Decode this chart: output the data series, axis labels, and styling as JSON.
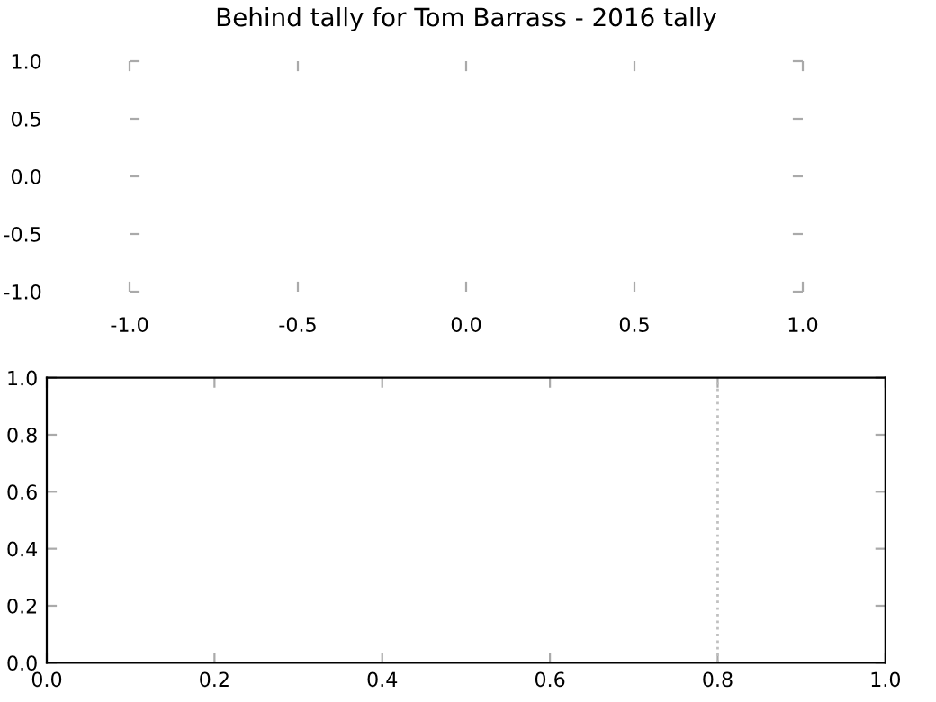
{
  "chart_data": [
    {
      "type": "line",
      "title": "Behind tally for Tom Barrass - 2016 tally",
      "xlim": [
        -1.0,
        1.0
      ],
      "xticks": [
        {
          "value": -1.0,
          "label": "-1.0"
        },
        -0.5,
        {
          "value": 0.0,
          "label": "0.0"
        },
        0.5,
        {
          "value": 1.0,
          "label": "1.0"
        }
      ],
      "ylim": [
        -1.0,
        1.0
      ],
      "yticks": [
        {
          "value": -1.0,
          "label": "-1.0"
        },
        -0.5,
        {
          "value": 0.0,
          "label": "0.0"
        },
        0.5,
        {
          "value": 1.0,
          "label": "1.0"
        }
      ],
      "grid": false,
      "legend": false
    },
    {
      "type": "line",
      "xlim": [
        0.0,
        1.0
      ],
      "xticks": [
        {
          "value": 0.0,
          "label": "0.0"
        },
        0.2,
        0.4,
        0.6,
        0.8,
        {
          "value": 1.0,
          "label": "1.0"
        }
      ],
      "ylim": [
        0.0,
        1.0
      ],
      "yticks": [
        {
          "value": 0.0,
          "label": "0.0"
        },
        0.2,
        0.4,
        0.6,
        0.8,
        {
          "value": 1.0,
          "label": "1.0"
        }
      ],
      "grid": false,
      "legend": false,
      "ref_lines": [
        {
          "axis": "x",
          "value": 0.8,
          "color": "#c0c0c0",
          "line_style": "dotted"
        }
      ]
    }
  ]
}
